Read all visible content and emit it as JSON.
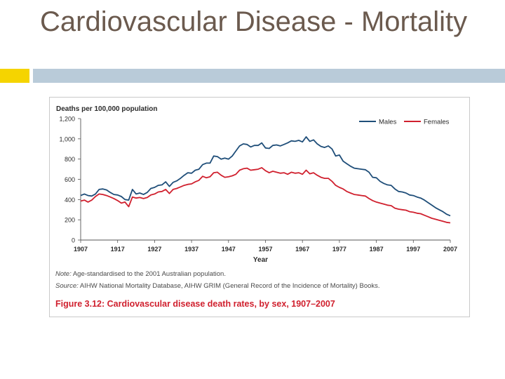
{
  "slide": {
    "title": "Cardiovascular Disease - Mortality"
  },
  "figure": {
    "note_lead": "Note:",
    "note_text": " Age-standardised to the 2001 Australian population.",
    "source_lead": "Source:",
    "source_text": " AIHW National Mortality Database, AIHW GRIM (General Record of the Incidence of Mortality) Books.",
    "caption": "Figure 3.12: Cardiovascular disease death rates, by sex, 1907–2007"
  },
  "colors": {
    "males": "#1f4e79",
    "females": "#d0202e"
  },
  "chart_data": {
    "type": "line",
    "ylabel": "Deaths per 100,000 population",
    "xlabel": "Year",
    "xlim": [
      1907,
      2007
    ],
    "ylim": [
      0,
      1200
    ],
    "xticks": [
      1907,
      1917,
      1927,
      1937,
      1947,
      1957,
      1967,
      1977,
      1987,
      1997,
      2007
    ],
    "yticks": [
      0,
      200,
      400,
      600,
      800,
      1000,
      1200
    ],
    "ytick_labels": [
      "0",
      "200",
      "400",
      "600",
      "800",
      "1,000",
      "1,200"
    ],
    "legend_position": "top-right",
    "series": [
      {
        "name": "Males",
        "color": "#1f4e79",
        "points": [
          [
            1907,
            440
          ],
          [
            1908,
            455
          ],
          [
            1909,
            440
          ],
          [
            1910,
            435
          ],
          [
            1911,
            455
          ],
          [
            1912,
            500
          ],
          [
            1913,
            505
          ],
          [
            1914,
            495
          ],
          [
            1915,
            470
          ],
          [
            1916,
            450
          ],
          [
            1917,
            445
          ],
          [
            1918,
            430
          ],
          [
            1919,
            400
          ],
          [
            1920,
            395
          ],
          [
            1921,
            500
          ],
          [
            1922,
            455
          ],
          [
            1923,
            465
          ],
          [
            1924,
            450
          ],
          [
            1925,
            470
          ],
          [
            1926,
            510
          ],
          [
            1927,
            520
          ],
          [
            1928,
            540
          ],
          [
            1929,
            545
          ],
          [
            1930,
            575
          ],
          [
            1931,
            530
          ],
          [
            1932,
            570
          ],
          [
            1933,
            585
          ],
          [
            1934,
            610
          ],
          [
            1935,
            640
          ],
          [
            1936,
            665
          ],
          [
            1937,
            660
          ],
          [
            1938,
            690
          ],
          [
            1939,
            700
          ],
          [
            1940,
            745
          ],
          [
            1941,
            760
          ],
          [
            1942,
            760
          ],
          [
            1943,
            830
          ],
          [
            1944,
            825
          ],
          [
            1945,
            800
          ],
          [
            1946,
            810
          ],
          [
            1947,
            800
          ],
          [
            1948,
            830
          ],
          [
            1949,
            880
          ],
          [
            1950,
            930
          ],
          [
            1951,
            950
          ],
          [
            1952,
            945
          ],
          [
            1953,
            920
          ],
          [
            1954,
            935
          ],
          [
            1955,
            935
          ],
          [
            1956,
            960
          ],
          [
            1957,
            910
          ],
          [
            1958,
            905
          ],
          [
            1959,
            935
          ],
          [
            1960,
            940
          ],
          [
            1961,
            930
          ],
          [
            1962,
            945
          ],
          [
            1963,
            960
          ],
          [
            1964,
            980
          ],
          [
            1965,
            975
          ],
          [
            1966,
            985
          ],
          [
            1967,
            970
          ],
          [
            1968,
            1020
          ],
          [
            1969,
            975
          ],
          [
            1970,
            990
          ],
          [
            1971,
            950
          ],
          [
            1972,
            925
          ],
          [
            1973,
            915
          ],
          [
            1974,
            930
          ],
          [
            1975,
            900
          ],
          [
            1976,
            830
          ],
          [
            1977,
            840
          ],
          [
            1978,
            780
          ],
          [
            1979,
            755
          ],
          [
            1980,
            730
          ],
          [
            1981,
            710
          ],
          [
            1982,
            705
          ],
          [
            1983,
            700
          ],
          [
            1984,
            695
          ],
          [
            1985,
            670
          ],
          [
            1986,
            620
          ],
          [
            1987,
            615
          ],
          [
            1988,
            580
          ],
          [
            1989,
            560
          ],
          [
            1990,
            545
          ],
          [
            1991,
            540
          ],
          [
            1992,
            505
          ],
          [
            1993,
            480
          ],
          [
            1994,
            475
          ],
          [
            1995,
            465
          ],
          [
            1996,
            445
          ],
          [
            1997,
            440
          ],
          [
            1998,
            425
          ],
          [
            1999,
            415
          ],
          [
            2000,
            395
          ],
          [
            2001,
            370
          ],
          [
            2002,
            345
          ],
          [
            2003,
            320
          ],
          [
            2004,
            300
          ],
          [
            2005,
            280
          ],
          [
            2006,
            255
          ],
          [
            2007,
            240
          ]
        ]
      },
      {
        "name": "Females",
        "color": "#d0202e",
        "points": [
          [
            1907,
            385
          ],
          [
            1908,
            395
          ],
          [
            1909,
            375
          ],
          [
            1910,
            395
          ],
          [
            1911,
            430
          ],
          [
            1912,
            455
          ],
          [
            1913,
            450
          ],
          [
            1914,
            440
          ],
          [
            1915,
            425
          ],
          [
            1916,
            410
          ],
          [
            1917,
            390
          ],
          [
            1918,
            365
          ],
          [
            1919,
            375
          ],
          [
            1920,
            330
          ],
          [
            1921,
            425
          ],
          [
            1922,
            415
          ],
          [
            1923,
            420
          ],
          [
            1924,
            410
          ],
          [
            1925,
            420
          ],
          [
            1926,
            445
          ],
          [
            1927,
            455
          ],
          [
            1928,
            475
          ],
          [
            1929,
            480
          ],
          [
            1930,
            500
          ],
          [
            1931,
            460
          ],
          [
            1932,
            500
          ],
          [
            1933,
            510
          ],
          [
            1934,
            525
          ],
          [
            1935,
            540
          ],
          [
            1936,
            550
          ],
          [
            1937,
            555
          ],
          [
            1938,
            575
          ],
          [
            1939,
            590
          ],
          [
            1940,
            630
          ],
          [
            1941,
            615
          ],
          [
            1942,
            625
          ],
          [
            1943,
            665
          ],
          [
            1944,
            670
          ],
          [
            1945,
            640
          ],
          [
            1946,
            620
          ],
          [
            1947,
            625
          ],
          [
            1948,
            635
          ],
          [
            1949,
            650
          ],
          [
            1950,
            690
          ],
          [
            1951,
            705
          ],
          [
            1952,
            710
          ],
          [
            1953,
            690
          ],
          [
            1954,
            695
          ],
          [
            1955,
            700
          ],
          [
            1956,
            715
          ],
          [
            1957,
            685
          ],
          [
            1958,
            665
          ],
          [
            1959,
            680
          ],
          [
            1960,
            670
          ],
          [
            1961,
            660
          ],
          [
            1962,
            665
          ],
          [
            1963,
            650
          ],
          [
            1964,
            670
          ],
          [
            1965,
            660
          ],
          [
            1966,
            665
          ],
          [
            1967,
            650
          ],
          [
            1968,
            690
          ],
          [
            1969,
            655
          ],
          [
            1970,
            665
          ],
          [
            1971,
            640
          ],
          [
            1972,
            620
          ],
          [
            1973,
            610
          ],
          [
            1974,
            610
          ],
          [
            1975,
            580
          ],
          [
            1976,
            540
          ],
          [
            1977,
            520
          ],
          [
            1978,
            505
          ],
          [
            1979,
            480
          ],
          [
            1980,
            465
          ],
          [
            1981,
            450
          ],
          [
            1982,
            445
          ],
          [
            1983,
            440
          ],
          [
            1984,
            435
          ],
          [
            1985,
            410
          ],
          [
            1986,
            390
          ],
          [
            1987,
            375
          ],
          [
            1988,
            365
          ],
          [
            1989,
            355
          ],
          [
            1990,
            345
          ],
          [
            1991,
            340
          ],
          [
            1992,
            315
          ],
          [
            1993,
            305
          ],
          [
            1994,
            300
          ],
          [
            1995,
            295
          ],
          [
            1996,
            280
          ],
          [
            1997,
            275
          ],
          [
            1998,
            265
          ],
          [
            1999,
            260
          ],
          [
            2000,
            245
          ],
          [
            2001,
            230
          ],
          [
            2002,
            215
          ],
          [
            2003,
            205
          ],
          [
            2004,
            195
          ],
          [
            2005,
            185
          ],
          [
            2006,
            175
          ],
          [
            2007,
            170
          ]
        ]
      }
    ]
  }
}
